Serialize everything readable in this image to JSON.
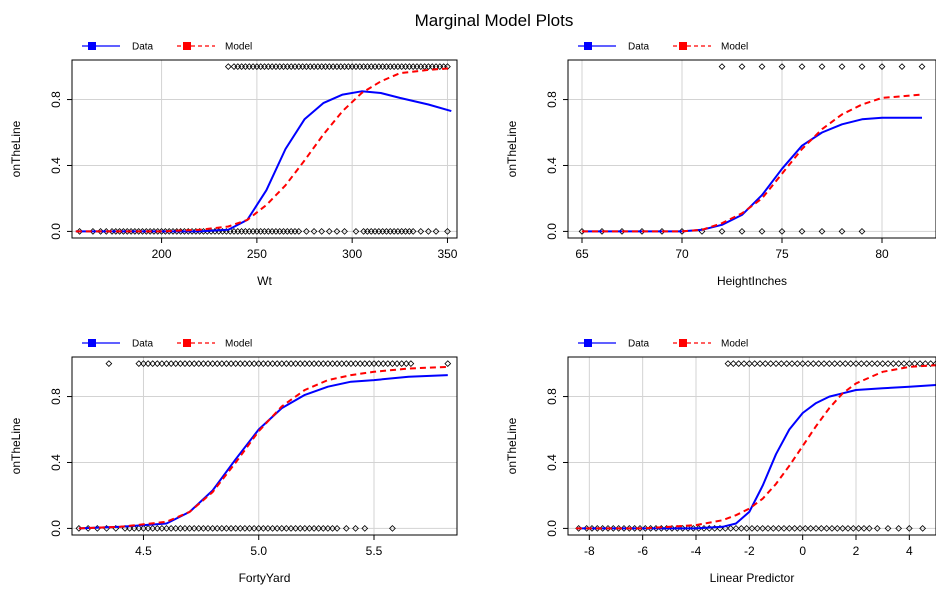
{
  "page": {
    "title": "Marginal Model Plots"
  },
  "style": {
    "data_color": "#0000ff",
    "model_color": "#ff0000",
    "grid_color": "#d3d3d3",
    "point_color": "#000000"
  },
  "legend": {
    "data_label": "Data",
    "model_label": "Model"
  },
  "chart_data": [
    {
      "type": "line",
      "xlabel": "Wt",
      "ylabel": "onTheLine",
      "xlim": [
        153,
        355
      ],
      "ylim": [
        -0.04,
        1.04
      ],
      "xticks": [
        150,
        200,
        250,
        300,
        350
      ],
      "yticks": [
        0.0,
        0.4,
        0.8
      ],
      "ytick_labels": [
        "0.0",
        "0.4",
        "0.8"
      ],
      "series": [
        {
          "name": "Data",
          "x": [
            155,
            180,
            200,
            220,
            235,
            245,
            255,
            265,
            275,
            285,
            295,
            305,
            315,
            325,
            340,
            352
          ],
          "y": [
            0.0,
            0.0,
            0.0,
            0.0,
            0.01,
            0.07,
            0.25,
            0.5,
            0.68,
            0.78,
            0.83,
            0.85,
            0.84,
            0.81,
            0.77,
            0.73
          ]
        },
        {
          "name": "Model",
          "x": [
            155,
            180,
            200,
            220,
            235,
            245,
            255,
            265,
            275,
            285,
            295,
            305,
            315,
            325,
            340,
            352
          ],
          "y": [
            0.0,
            0.0,
            0.0,
            0.01,
            0.03,
            0.07,
            0.16,
            0.28,
            0.43,
            0.59,
            0.73,
            0.84,
            0.91,
            0.96,
            0.98,
            0.99
          ]
        }
      ],
      "points_top": [
        235,
        238,
        240,
        242,
        244,
        246,
        248,
        250,
        252,
        254,
        256,
        258,
        260,
        262,
        264,
        266,
        268,
        270,
        272,
        274,
        276,
        278,
        280,
        282,
        284,
        286,
        288,
        290,
        292,
        294,
        296,
        298,
        300,
        302,
        304,
        306,
        308,
        310,
        312,
        314,
        316,
        318,
        320,
        322,
        324,
        326,
        328,
        330,
        332,
        334,
        336,
        338,
        340,
        342,
        344,
        346,
        348,
        350
      ],
      "points_bottom": [
        157,
        164,
        168,
        171,
        174,
        176,
        178,
        180,
        182,
        184,
        186,
        188,
        190,
        192,
        194,
        196,
        198,
        200,
        202,
        204,
        206,
        208,
        210,
        212,
        214,
        216,
        218,
        220,
        222,
        224,
        226,
        228,
        230,
        232,
        234,
        236,
        238,
        240,
        242,
        244,
        246,
        248,
        250,
        252,
        254,
        256,
        258,
        260,
        262,
        264,
        266,
        268,
        270,
        272,
        276,
        280,
        284,
        288,
        292,
        296,
        302,
        306,
        308,
        310,
        312,
        314,
        316,
        318,
        320,
        322,
        324,
        326,
        328,
        330,
        332,
        336,
        340,
        344,
        350
      ]
    },
    {
      "type": "line",
      "xlabel": "HeightInches",
      "ylabel": "onTheLine",
      "xlim": [
        64.3,
        82.7
      ],
      "ylim": [
        -0.04,
        1.04
      ],
      "xticks": [
        65,
        70,
        75,
        80
      ],
      "yticks": [
        0.0,
        0.4,
        0.8
      ],
      "ytick_labels": [
        "0.0",
        "0.4",
        "0.8"
      ],
      "series": [
        {
          "name": "Data",
          "x": [
            65,
            67,
            69,
            70,
            71,
            72,
            73,
            74,
            75,
            76,
            77,
            78,
            79,
            80,
            82
          ],
          "y": [
            0.0,
            0.0,
            0.0,
            0.0,
            0.01,
            0.04,
            0.1,
            0.22,
            0.38,
            0.52,
            0.6,
            0.65,
            0.68,
            0.69,
            0.69
          ]
        },
        {
          "name": "Model",
          "x": [
            65,
            67,
            69,
            70,
            71,
            72,
            73,
            74,
            75,
            76,
            77,
            78,
            79,
            80,
            82
          ],
          "y": [
            0.0,
            0.0,
            0.0,
            0.0,
            0.01,
            0.05,
            0.11,
            0.2,
            0.35,
            0.5,
            0.62,
            0.71,
            0.77,
            0.81,
            0.83
          ]
        }
      ],
      "points_top": [
        72,
        73,
        74,
        75,
        76,
        77,
        78,
        79,
        80,
        81,
        82
      ],
      "points_bottom": [
        65,
        66,
        67,
        68,
        69,
        70,
        71,
        72,
        73,
        74,
        75,
        76,
        77,
        78,
        79
      ]
    },
    {
      "type": "line",
      "xlabel": "FortyYard",
      "ylabel": "onTheLine",
      "xlim": [
        4.19,
        5.86
      ],
      "ylim": [
        -0.04,
        1.04
      ],
      "xticks": [
        4.5,
        5.0,
        5.5
      ],
      "xtick_labels": [
        "4.5",
        "5.0",
        "5.5"
      ],
      "yticks": [
        0.0,
        0.4,
        0.8
      ],
      "ytick_labels": [
        "0.0",
        "0.4",
        "0.8"
      ],
      "series": [
        {
          "name": "Data",
          "x": [
            4.22,
            4.4,
            4.6,
            4.7,
            4.8,
            4.9,
            5.0,
            5.1,
            5.2,
            5.3,
            5.4,
            5.5,
            5.65,
            5.82
          ],
          "y": [
            0.0,
            0.01,
            0.03,
            0.1,
            0.23,
            0.42,
            0.6,
            0.73,
            0.81,
            0.86,
            0.89,
            0.9,
            0.92,
            0.93
          ]
        },
        {
          "name": "Model",
          "x": [
            4.22,
            4.4,
            4.6,
            4.7,
            4.8,
            4.9,
            5.0,
            5.1,
            5.2,
            5.3,
            5.4,
            5.5,
            5.65,
            5.82
          ],
          "y": [
            0.0,
            0.01,
            0.04,
            0.1,
            0.22,
            0.4,
            0.59,
            0.74,
            0.84,
            0.9,
            0.93,
            0.95,
            0.97,
            0.98
          ]
        }
      ],
      "points_top": [
        4.35,
        4.48,
        4.5,
        4.52,
        4.54,
        4.56,
        4.58,
        4.6,
        4.62,
        4.64,
        4.66,
        4.68,
        4.7,
        4.72,
        4.74,
        4.76,
        4.78,
        4.8,
        4.82,
        4.84,
        4.86,
        4.88,
        4.9,
        4.92,
        4.94,
        4.96,
        4.98,
        5.0,
        5.02,
        5.04,
        5.06,
        5.08,
        5.1,
        5.12,
        5.14,
        5.16,
        5.18,
        5.2,
        5.22,
        5.24,
        5.26,
        5.28,
        5.3,
        5.32,
        5.34,
        5.36,
        5.38,
        5.4,
        5.42,
        5.44,
        5.46,
        5.48,
        5.5,
        5.52,
        5.54,
        5.56,
        5.58,
        5.6,
        5.62,
        5.64,
        5.66,
        5.82
      ],
      "points_bottom": [
        4.22,
        4.26,
        4.3,
        4.34,
        4.38,
        4.42,
        4.44,
        4.46,
        4.48,
        4.5,
        4.52,
        4.54,
        4.56,
        4.58,
        4.6,
        4.62,
        4.64,
        4.66,
        4.68,
        4.7,
        4.72,
        4.74,
        4.76,
        4.78,
        4.8,
        4.82,
        4.84,
        4.86,
        4.88,
        4.9,
        4.92,
        4.94,
        4.96,
        4.98,
        5.0,
        5.02,
        5.04,
        5.06,
        5.08,
        5.1,
        5.12,
        5.14,
        5.16,
        5.18,
        5.2,
        5.22,
        5.24,
        5.26,
        5.28,
        5.3,
        5.32,
        5.34,
        5.38,
        5.42,
        5.46,
        5.58
      ]
    },
    {
      "type": "line",
      "xlabel": "Linear Predictor",
      "ylabel": "onTheLine",
      "xlim": [
        -8.8,
        5.0
      ],
      "ylim": [
        -0.04,
        1.04
      ],
      "xticks": [
        -8,
        -6,
        -4,
        -2,
        0,
        2,
        4
      ],
      "yticks": [
        0.0,
        0.4,
        0.8
      ],
      "ytick_labels": [
        "0.0",
        "0.4",
        "0.8"
      ],
      "series": [
        {
          "name": "Data",
          "x": [
            -8.5,
            -6,
            -4,
            -3,
            -2.5,
            -2,
            -1.5,
            -1,
            -0.5,
            0,
            0.5,
            1,
            1.5,
            2,
            3,
            4,
            5
          ],
          "y": [
            0.0,
            0.0,
            0.0,
            0.01,
            0.03,
            0.1,
            0.26,
            0.45,
            0.6,
            0.7,
            0.76,
            0.8,
            0.82,
            0.84,
            0.85,
            0.86,
            0.87
          ]
        },
        {
          "name": "Model",
          "x": [
            -8.5,
            -6,
            -4,
            -3,
            -2.5,
            -2,
            -1.5,
            -1,
            -0.5,
            0,
            0.5,
            1,
            1.5,
            2,
            3,
            4,
            5
          ],
          "y": [
            0.0,
            0.0,
            0.02,
            0.05,
            0.08,
            0.12,
            0.18,
            0.27,
            0.38,
            0.5,
            0.62,
            0.73,
            0.82,
            0.88,
            0.95,
            0.98,
            0.99
          ]
        }
      ],
      "points_top": [
        -2.8,
        -2.6,
        -2.4,
        -2.2,
        -2.0,
        -1.8,
        -1.6,
        -1.4,
        -1.2,
        -1.0,
        -0.8,
        -0.6,
        -0.4,
        -0.2,
        0.0,
        0.2,
        0.4,
        0.6,
        0.8,
        1.0,
        1.2,
        1.4,
        1.6,
        1.8,
        2.0,
        2.2,
        2.4,
        2.6,
        2.8,
        3.0,
        3.2,
        3.4,
        3.6,
        3.8,
        4.0,
        4.2,
        4.4,
        4.6,
        4.8,
        5.0
      ],
      "points_bottom": [
        -8.4,
        -8.1,
        -7.9,
        -7.7,
        -7.5,
        -7.3,
        -7.1,
        -6.9,
        -6.7,
        -6.5,
        -6.3,
        -6.1,
        -5.9,
        -5.7,
        -5.5,
        -5.3,
        -5.1,
        -4.9,
        -4.7,
        -4.5,
        -4.3,
        -4.1,
        -3.9,
        -3.7,
        -3.5,
        -3.3,
        -3.1,
        -2.9,
        -2.7,
        -2.5,
        -2.3,
        -2.1,
        -1.9,
        -1.7,
        -1.5,
        -1.3,
        -1.1,
        -0.9,
        -0.7,
        -0.5,
        -0.3,
        -0.1,
        0.1,
        0.3,
        0.5,
        0.7,
        0.9,
        1.1,
        1.3,
        1.5,
        1.7,
        1.9,
        2.1,
        2.3,
        2.5,
        2.8,
        3.2,
        3.6,
        4.0,
        4.5
      ]
    }
  ]
}
